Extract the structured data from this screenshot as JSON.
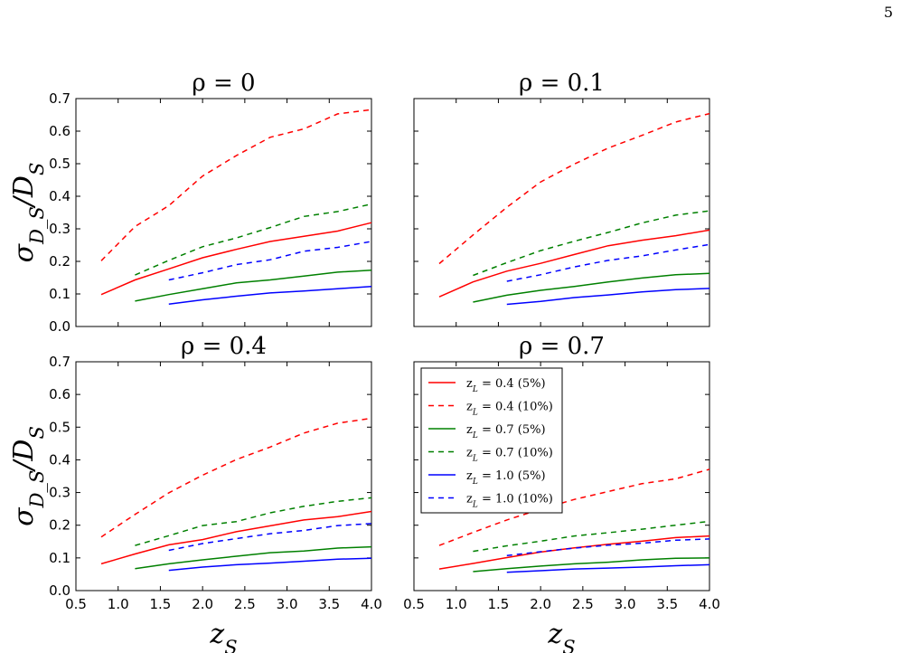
{
  "page_number": "5",
  "chart_data": {
    "type": "line",
    "xlabel": "z_S",
    "ylabel": "σ_{D_S}/D_S",
    "xlim": [
      0.5,
      4.0
    ],
    "ylim": [
      0.0,
      0.7
    ],
    "xticks": [
      "0.5",
      "1.0",
      "1.5",
      "2.0",
      "2.5",
      "3.0",
      "3.5",
      "4.0"
    ],
    "yticks": [
      "0.0",
      "0.1",
      "0.2",
      "0.3",
      "0.4",
      "0.5",
      "0.6",
      "0.7"
    ],
    "grid": false,
    "legend": {
      "placement": "upper-left of bottom-right panel",
      "entries": [
        {
          "label": "z_L = 0.4 (5%)",
          "color": "#ff0000",
          "style": "solid"
        },
        {
          "label": "z_L = 0.4 (10%)",
          "color": "#ff0000",
          "style": "dashed"
        },
        {
          "label": "z_L = 0.7 (5%)",
          "color": "#008000",
          "style": "solid"
        },
        {
          "label": "z_L = 0.7 (10%)",
          "color": "#008000",
          "style": "dashed"
        },
        {
          "label": "z_L = 1.0 (5%)",
          "color": "#0000ff",
          "style": "solid"
        },
        {
          "label": "z_L = 1.0 (10%)",
          "color": "#0000ff",
          "style": "dashed"
        }
      ]
    },
    "panels": [
      {
        "title": "ρ = 0",
        "series": [
          {
            "name": "z_L = 0.4 (5%)",
            "color": "#ff0000",
            "style": "solid",
            "x": [
              0.8,
              1.2,
              1.6,
              2.0,
              2.4,
              2.8,
              3.2,
              3.6,
              4.0
            ],
            "y": [
              0.098,
              0.143,
              0.177,
              0.211,
              0.237,
              0.261,
              0.277,
              0.293,
              0.319
            ]
          },
          {
            "name": "z_L = 0.4 (10%)",
            "color": "#ff0000",
            "style": "dashed",
            "x": [
              0.8,
              1.2,
              1.6,
              2.0,
              2.4,
              2.8,
              3.2,
              3.6,
              4.0
            ],
            "y": [
              0.202,
              0.307,
              0.371,
              0.462,
              0.525,
              0.581,
              0.607,
              0.653,
              0.666
            ]
          },
          {
            "name": "z_L = 0.7 (5%)",
            "color": "#008000",
            "style": "solid",
            "x": [
              1.2,
              1.6,
              2.0,
              2.4,
              2.8,
              3.2,
              3.6,
              4.0
            ],
            "y": [
              0.078,
              0.098,
              0.116,
              0.134,
              0.143,
              0.155,
              0.167,
              0.173
            ]
          },
          {
            "name": "z_L = 0.7 (10%)",
            "color": "#008000",
            "style": "dashed",
            "x": [
              1.2,
              1.6,
              2.0,
              2.4,
              2.8,
              3.2,
              3.6,
              4.0
            ],
            "y": [
              0.158,
              0.203,
              0.245,
              0.272,
              0.304,
              0.338,
              0.353,
              0.376
            ]
          },
          {
            "name": "z_L = 1.0 (5%)",
            "color": "#0000ff",
            "style": "solid",
            "x": [
              1.6,
              2.0,
              2.4,
              2.8,
              3.2,
              3.6,
              4.0
            ],
            "y": [
              0.069,
              0.082,
              0.093,
              0.103,
              0.109,
              0.116,
              0.123
            ]
          },
          {
            "name": "z_L = 1.0 (10%)",
            "color": "#0000ff",
            "style": "dashed",
            "x": [
              1.6,
              2.0,
              2.4,
              2.8,
              3.2,
              3.6,
              4.0
            ],
            "y": [
              0.143,
              0.165,
              0.19,
              0.205,
              0.231,
              0.243,
              0.261
            ]
          }
        ]
      },
      {
        "title": "ρ = 0.1",
        "series": [
          {
            "name": "z_L = 0.4 (5%)",
            "color": "#ff0000",
            "style": "solid",
            "x": [
              0.8,
              1.2,
              1.6,
              2.0,
              2.4,
              2.8,
              3.2,
              3.6,
              4.0
            ],
            "y": [
              0.091,
              0.137,
              0.17,
              0.194,
              0.221,
              0.248,
              0.265,
              0.279,
              0.296
            ]
          },
          {
            "name": "z_L = 0.4 (10%)",
            "color": "#ff0000",
            "style": "dashed",
            "x": [
              0.8,
              1.2,
              1.6,
              2.0,
              2.4,
              2.8,
              3.2,
              3.6,
              4.0
            ],
            "y": [
              0.193,
              0.281,
              0.366,
              0.444,
              0.499,
              0.548,
              0.587,
              0.628,
              0.654
            ]
          },
          {
            "name": "z_L = 0.7 (5%)",
            "color": "#008000",
            "style": "solid",
            "x": [
              1.2,
              1.6,
              2.0,
              2.4,
              2.8,
              3.2,
              3.6,
              4.0
            ],
            "y": [
              0.075,
              0.096,
              0.111,
              0.123,
              0.137,
              0.149,
              0.159,
              0.163
            ]
          },
          {
            "name": "z_L = 0.7 (10%)",
            "color": "#008000",
            "style": "dashed",
            "x": [
              1.2,
              1.6,
              2.0,
              2.4,
              2.8,
              3.2,
              3.6,
              4.0
            ],
            "y": [
              0.157,
              0.196,
              0.233,
              0.262,
              0.289,
              0.318,
              0.342,
              0.355
            ]
          },
          {
            "name": "z_L = 1.0 (5%)",
            "color": "#0000ff",
            "style": "solid",
            "x": [
              1.6,
              2.0,
              2.4,
              2.8,
              3.2,
              3.6,
              4.0
            ],
            "y": [
              0.068,
              0.077,
              0.089,
              0.097,
              0.106,
              0.113,
              0.117
            ]
          },
          {
            "name": "z_L = 1.0 (10%)",
            "color": "#0000ff",
            "style": "dashed",
            "x": [
              1.6,
              2.0,
              2.4,
              2.8,
              3.2,
              3.6,
              4.0
            ],
            "y": [
              0.139,
              0.159,
              0.183,
              0.203,
              0.217,
              0.235,
              0.252
            ]
          }
        ]
      },
      {
        "title": "ρ = 0.4",
        "series": [
          {
            "name": "z_L = 0.4 (5%)",
            "color": "#ff0000",
            "style": "solid",
            "x": [
              0.8,
              1.2,
              1.6,
              2.0,
              2.4,
              2.8,
              3.2,
              3.6,
              4.0
            ],
            "y": [
              0.082,
              0.112,
              0.14,
              0.156,
              0.18,
              0.198,
              0.216,
              0.226,
              0.242
            ]
          },
          {
            "name": "z_L = 0.4 (10%)",
            "color": "#ff0000",
            "style": "dashed",
            "x": [
              0.8,
              1.2,
              1.6,
              2.0,
              2.4,
              2.8,
              3.2,
              3.6,
              4.0
            ],
            "y": [
              0.164,
              0.233,
              0.299,
              0.353,
              0.401,
              0.439,
              0.482,
              0.512,
              0.527
            ]
          },
          {
            "name": "z_L = 0.7 (5%)",
            "color": "#008000",
            "style": "solid",
            "x": [
              1.2,
              1.6,
              2.0,
              2.4,
              2.8,
              3.2,
              3.6,
              4.0
            ],
            "y": [
              0.067,
              0.082,
              0.094,
              0.105,
              0.116,
              0.121,
              0.13,
              0.134
            ]
          },
          {
            "name": "z_L = 0.7 (10%)",
            "color": "#008000",
            "style": "dashed",
            "x": [
              1.2,
              1.6,
              2.0,
              2.4,
              2.8,
              3.2,
              3.6,
              4.0
            ],
            "y": [
              0.138,
              0.168,
              0.199,
              0.211,
              0.238,
              0.258,
              0.273,
              0.284
            ]
          },
          {
            "name": "z_L = 1.0 (5%)",
            "color": "#0000ff",
            "style": "solid",
            "x": [
              1.6,
              2.0,
              2.4,
              2.8,
              3.2,
              3.6,
              4.0
            ],
            "y": [
              0.062,
              0.072,
              0.079,
              0.084,
              0.09,
              0.096,
              0.099
            ]
          },
          {
            "name": "z_L = 1.0 (10%)",
            "color": "#0000ff",
            "style": "dashed",
            "x": [
              1.6,
              2.0,
              2.4,
              2.8,
              3.2,
              3.6,
              4.0
            ],
            "y": [
              0.123,
              0.144,
              0.159,
              0.174,
              0.184,
              0.199,
              0.205
            ]
          }
        ]
      },
      {
        "title": "ρ = 0.7",
        "series": [
          {
            "name": "z_L = 0.4 (5%)",
            "color": "#ff0000",
            "style": "solid",
            "x": [
              0.8,
              1.2,
              1.6,
              2.0,
              2.4,
              2.8,
              3.2,
              3.6,
              4.0
            ],
            "y": [
              0.066,
              0.083,
              0.101,
              0.118,
              0.131,
              0.142,
              0.151,
              0.162,
              0.167
            ]
          },
          {
            "name": "z_L = 0.4 (10%)",
            "color": "#ff0000",
            "style": "dashed",
            "x": [
              0.8,
              1.2,
              1.6,
              2.0,
              2.4,
              2.8,
              3.2,
              3.6,
              4.0
            ],
            "y": [
              0.138,
              0.178,
              0.216,
              0.249,
              0.279,
              0.303,
              0.327,
              0.342,
              0.371
            ]
          },
          {
            "name": "z_L = 0.7 (5%)",
            "color": "#008000",
            "style": "solid",
            "x": [
              1.2,
              1.6,
              2.0,
              2.4,
              2.8,
              3.2,
              3.6,
              4.0
            ],
            "y": [
              0.058,
              0.067,
              0.075,
              0.082,
              0.087,
              0.094,
              0.099,
              0.1
            ]
          },
          {
            "name": "z_L = 0.7 (10%)",
            "color": "#008000",
            "style": "dashed",
            "x": [
              1.2,
              1.6,
              2.0,
              2.4,
              2.8,
              3.2,
              3.6,
              4.0
            ],
            "y": [
              0.12,
              0.137,
              0.151,
              0.167,
              0.177,
              0.188,
              0.2,
              0.212
            ]
          },
          {
            "name": "z_L = 1.0 (5%)",
            "color": "#0000ff",
            "style": "solid",
            "x": [
              1.6,
              2.0,
              2.4,
              2.8,
              3.2,
              3.6,
              4.0
            ],
            "y": [
              0.056,
              0.061,
              0.066,
              0.069,
              0.072,
              0.076,
              0.079
            ]
          },
          {
            "name": "z_L = 1.0 (10%)",
            "color": "#0000ff",
            "style": "dashed",
            "x": [
              1.6,
              2.0,
              2.4,
              2.8,
              3.2,
              3.6,
              4.0
            ],
            "y": [
              0.107,
              0.119,
              0.13,
              0.139,
              0.145,
              0.154,
              0.158
            ]
          }
        ]
      }
    ]
  }
}
